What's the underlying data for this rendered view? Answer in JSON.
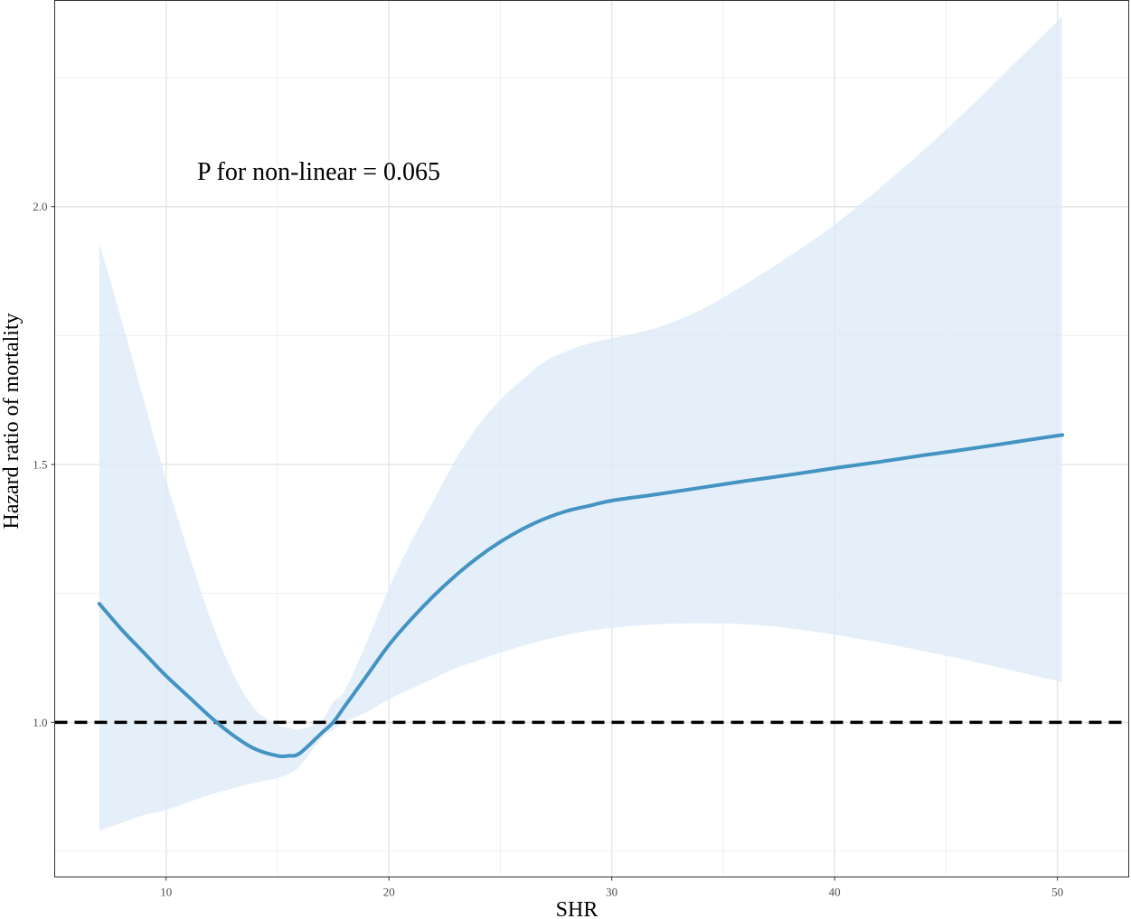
{
  "chart_data": {
    "type": "line",
    "xlabel": "SHR",
    "ylabel": "Hazard ratio of mortality",
    "annotation": "P for non-linear = 0.065",
    "xlim": [
      5,
      53.2
    ],
    "ylim": [
      0.7,
      2.4
    ],
    "x_ticks": [
      10,
      20,
      30,
      40,
      50
    ],
    "y_ticks": [
      1.0,
      1.5,
      2.0
    ],
    "x_tick_labels": [
      "10",
      "20",
      "30",
      "40",
      "50"
    ],
    "y_tick_labels": [
      "1.0",
      "1.5",
      "2.0"
    ],
    "x_minor_grid": [
      15,
      25,
      35,
      45
    ],
    "y_minor_grid": [
      0.75,
      1.25,
      1.75,
      2.25
    ],
    "reference_line": {
      "y": 1.0,
      "style": "dashed",
      "color": "#000000"
    },
    "grid": true,
    "series": [
      {
        "color": "#4393c3",
        "band_color": "#deebf7",
        "points": [
          {
            "x": 7.0,
            "y": 1.23,
            "lower": 0.79,
            "upper": 1.93
          },
          {
            "x": 8.0,
            "y": 1.18,
            "lower": 0.805,
            "upper": 1.78
          },
          {
            "x": 9.0,
            "y": 1.135,
            "lower": 0.82,
            "upper": 1.625
          },
          {
            "x": 10.0,
            "y": 1.09,
            "lower": 0.83,
            "upper": 1.47
          },
          {
            "x": 11.0,
            "y": 1.05,
            "lower": 0.845,
            "upper": 1.33
          },
          {
            "x": 12.0,
            "y": 1.01,
            "lower": 0.86,
            "upper": 1.2
          },
          {
            "x": 13.0,
            "y": 0.975,
            "lower": 0.872,
            "upper": 1.095
          },
          {
            "x": 14.0,
            "y": 0.948,
            "lower": 0.883,
            "upper": 1.025
          },
          {
            "x": 15.0,
            "y": 0.935,
            "lower": 0.892,
            "upper": 0.995
          },
          {
            "x": 15.5,
            "y": 0.935,
            "lower": 0.9,
            "upper": 0.99
          },
          {
            "x": 16.0,
            "y": 0.94,
            "lower": 0.915,
            "upper": 0.986
          },
          {
            "x": 17.0,
            "y": 0.98,
            "lower": 0.97,
            "upper": 1.005
          },
          {
            "x": 17.5,
            "y": 1.0,
            "lower": 0.985,
            "upper": 1.04
          },
          {
            "x": 18.0,
            "y": 1.03,
            "lower": 1.0,
            "upper": 1.06
          },
          {
            "x": 19.0,
            "y": 1.09,
            "lower": 1.02,
            "upper": 1.155
          },
          {
            "x": 20.0,
            "y": 1.15,
            "lower": 1.045,
            "upper": 1.26
          },
          {
            "x": 21.0,
            "y": 1.2,
            "lower": 1.065,
            "upper": 1.35
          },
          {
            "x": 22.0,
            "y": 1.245,
            "lower": 1.085,
            "upper": 1.43
          },
          {
            "x": 23.0,
            "y": 1.285,
            "lower": 1.105,
            "upper": 1.51
          },
          {
            "x": 24.0,
            "y": 1.32,
            "lower": 1.12,
            "upper": 1.575
          },
          {
            "x": 25.0,
            "y": 1.35,
            "lower": 1.135,
            "upper": 1.625
          },
          {
            "x": 26.0,
            "y": 1.375,
            "lower": 1.148,
            "upper": 1.665
          },
          {
            "x": 27.0,
            "y": 1.395,
            "lower": 1.16,
            "upper": 1.7
          },
          {
            "x": 28.0,
            "y": 1.41,
            "lower": 1.17,
            "upper": 1.72
          },
          {
            "x": 29.0,
            "y": 1.42,
            "lower": 1.178,
            "upper": 1.735
          },
          {
            "x": 30.0,
            "y": 1.43,
            "lower": 1.183,
            "upper": 1.745
          },
          {
            "x": 32.0,
            "y": 1.442,
            "lower": 1.19,
            "upper": 1.765
          },
          {
            "x": 34.0,
            "y": 1.455,
            "lower": 1.192,
            "upper": 1.8
          },
          {
            "x": 36.0,
            "y": 1.468,
            "lower": 1.19,
            "upper": 1.85
          },
          {
            "x": 38.0,
            "y": 1.48,
            "lower": 1.182,
            "upper": 1.905
          },
          {
            "x": 40.0,
            "y": 1.493,
            "lower": 1.17,
            "upper": 1.965
          },
          {
            "x": 42.0,
            "y": 1.505,
            "lower": 1.155,
            "upper": 2.035
          },
          {
            "x": 44.0,
            "y": 1.518,
            "lower": 1.138,
            "upper": 2.11
          },
          {
            "x": 46.0,
            "y": 1.53,
            "lower": 1.12,
            "upper": 2.19
          },
          {
            "x": 48.0,
            "y": 1.543,
            "lower": 1.1,
            "upper": 2.275
          },
          {
            "x": 50.0,
            "y": 1.556,
            "lower": 1.08,
            "upper": 2.36
          },
          {
            "x": 50.2,
            "y": 1.557,
            "lower": 1.078,
            "upper": 2.37
          }
        ]
      }
    ]
  }
}
